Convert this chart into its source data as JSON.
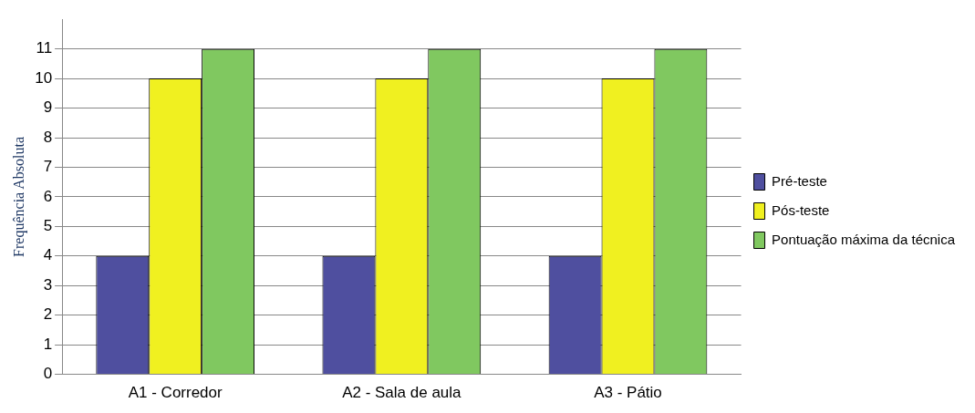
{
  "chart_data": {
    "type": "bar",
    "ylabel": "Frequência Absoluta",
    "categories": [
      "A1 - Corredor",
      "A2 - Sala de aula",
      "A3 - Pátio"
    ],
    "series": [
      {
        "name": "Pré-teste",
        "color": "#4f4f9f",
        "values": [
          4,
          4,
          4
        ]
      },
      {
        "name": "Pós-teste",
        "color": "#f0f020",
        "values": [
          10,
          10,
          10
        ]
      },
      {
        "name": "Pontuação máxima da técnica",
        "color": "#80c860",
        "values": [
          11,
          11,
          11
        ]
      }
    ],
    "ylim": [
      0,
      12
    ],
    "yticks": [
      0,
      1,
      2,
      3,
      4,
      5,
      6,
      7,
      8,
      9,
      10,
      11
    ],
    "grid": "y",
    "legend": "right"
  }
}
